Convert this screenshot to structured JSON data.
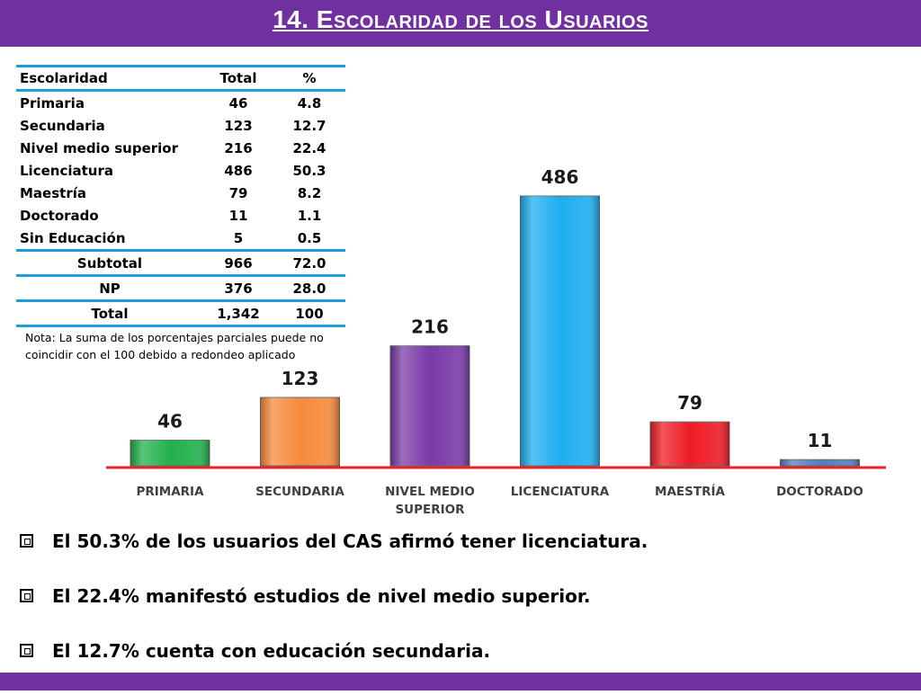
{
  "title": "14. Escolaridad de los Usuarios",
  "table": {
    "headers": [
      "Escolaridad",
      "Total",
      "%"
    ],
    "rows": [
      {
        "label": "Primaria",
        "total": "46",
        "pct": "4.8"
      },
      {
        "label": "Secundaria",
        "total": "123",
        "pct": "12.7"
      },
      {
        "label": "Nivel medio superior",
        "total": "216",
        "pct": "22.4"
      },
      {
        "label": "Licenciatura",
        "total": "486",
        "pct": "50.3"
      },
      {
        "label": "Maestría",
        "total": "79",
        "pct": "8.2"
      },
      {
        "label": "Doctorado",
        "total": "11",
        "pct": "1.1"
      },
      {
        "label": "Sin Educación",
        "total": "5",
        "pct": "0.5"
      }
    ],
    "subtotal": {
      "label": "Subtotal",
      "total": "966",
      "pct": "72.0"
    },
    "np": {
      "label": "NP",
      "total": "376",
      "pct": "28.0"
    },
    "grand_total": {
      "label": "Total",
      "total": "1,342",
      "pct": "100"
    }
  },
  "note": "Nota: La suma de los porcentajes parciales puede no coincidir con el 100 debido a redondeo aplicado",
  "chart_data": {
    "type": "bar",
    "categories": [
      "PRIMARIA",
      "SECUNDARIA",
      "NIVEL MEDIO SUPERIOR",
      "LICENCIATURA",
      "MAESTRÍA",
      "DOCTORADO"
    ],
    "values": [
      46,
      123,
      216,
      486,
      79,
      11
    ],
    "colors": [
      "#22b14c",
      "#f58a3c",
      "#7b3aa8",
      "#1eaef0",
      "#ee1c25",
      "#4f7fbf"
    ],
    "axis_color": "#e32626",
    "title": "",
    "xlabel": "",
    "ylabel": "",
    "grid": false,
    "legend": "none"
  },
  "bullets": [
    "El 50.3% de los usuarios del CAS afirmó tener licenciatura.",
    "El 22.4% manifestó estudios de nivel medio superior.",
    "El 12.7% cuenta con educación secundaria."
  ]
}
